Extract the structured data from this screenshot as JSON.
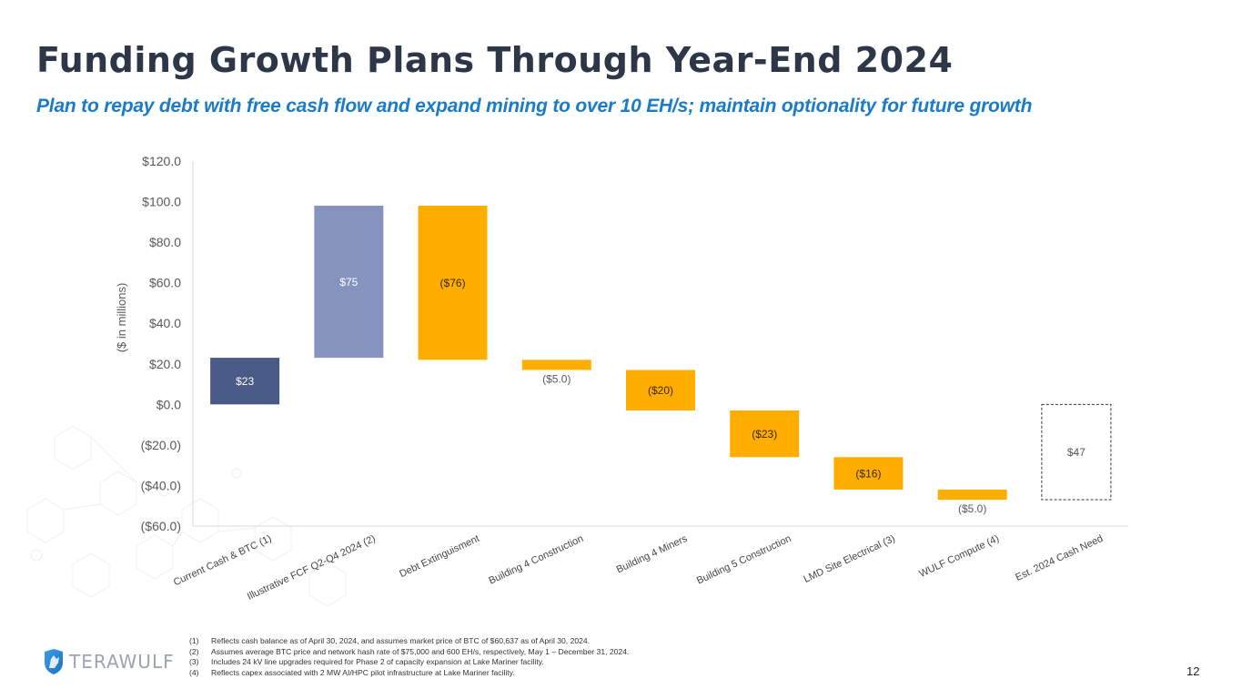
{
  "slide": {
    "title": "Funding Growth Plans Through Year-End 2024",
    "subtitle": "Plan to repay debt with free cash flow and expand mining to over 10 EH/s; maintain optionality for future growth",
    "page_number": "12",
    "logo_text": "TERAWULF",
    "footnotes": [
      {
        "num": "(1)",
        "text": "Reflects cash balance as of April 30, 2024, and assumes market price of BTC of $60,637 as of April 30, 2024."
      },
      {
        "num": "(2)",
        "text": "Assumes average BTC price and network hash rate of $75,000 and 600 EH/s, respectively, May 1 – December 31, 2024."
      },
      {
        "num": "(3)",
        "text": "Includes 24 kV line upgrades required for Phase 2 of capacity expansion at Lake Mariner facility."
      },
      {
        "num": "(4)",
        "text": "Reflects capex associated with 2 MW AI/HPC pilot infrastructure at Lake Mariner facility."
      }
    ],
    "colors": {
      "title": "#2d3748",
      "subtitle": "#1a7bc9",
      "start_bar": "#4a5a87",
      "increase_bar": "#8793bf",
      "decrease_bar": "#ffae00",
      "total_outline": "#333333"
    }
  },
  "chart_data": {
    "type": "bar",
    "subtype": "waterfall",
    "title": "",
    "xlabel": "",
    "ylabel": "($ in millions)",
    "ylim": [
      -60,
      120
    ],
    "yticks": [
      120,
      100,
      80,
      60,
      40,
      20,
      0,
      -20,
      -40,
      -60
    ],
    "ytick_labels": [
      "$120.0",
      "$100.0",
      "$80.0",
      "$60.0",
      "$40.0",
      "$20.0",
      "$0.0",
      "($20.0)",
      "($40.0)",
      "($60.0)"
    ],
    "grid": false,
    "legend": "none",
    "categories": [
      "Current Cash & BTC (1)",
      "Illustrative FCF Q2-Q4 2024 (2)",
      "Debt Extinguisment",
      "Building 4 Construction",
      "Building 4 Miners",
      "Building 5 Construction",
      "LMD Site Electrical (3)",
      "WULF Compute  (4)",
      "Est. 2024 Cash Need"
    ],
    "values": [
      23,
      75,
      -76,
      -5,
      -20,
      -23,
      -16,
      -5,
      47
    ],
    "kinds": [
      "start",
      "increase",
      "decrease",
      "decrease",
      "decrease",
      "decrease",
      "decrease",
      "decrease",
      "total"
    ],
    "data_labels": [
      "$23",
      "$75",
      "($76)",
      "($5.0)",
      "($20)",
      "($23)",
      "($16)",
      "($5.0)",
      "$47"
    ],
    "label_inside": [
      true,
      true,
      true,
      false,
      true,
      true,
      true,
      false,
      true
    ]
  }
}
